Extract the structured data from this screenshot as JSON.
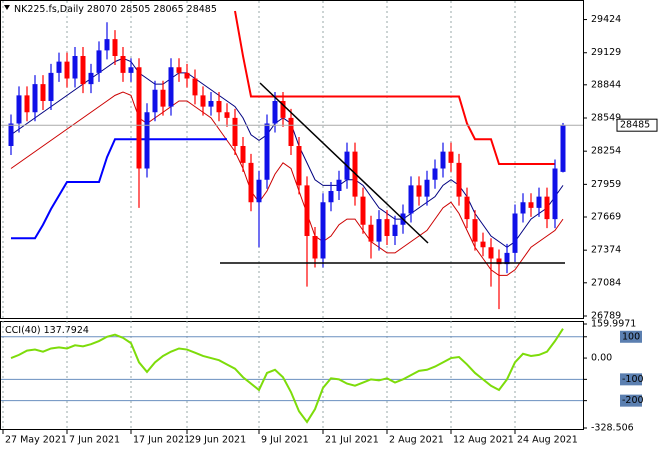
{
  "chart_data": [
    {
      "type": "candlestick",
      "title": "NK225.fs,Daily",
      "categories": [
        "27 May 2021",
        null,
        null,
        null,
        null,
        null,
        null,
        null,
        "7 Jun 2021",
        null,
        null,
        null,
        null,
        null,
        null,
        null,
        "17 Jun 2021",
        null,
        null,
        null,
        null,
        null,
        null,
        "29 Jun 2021",
        null,
        null,
        null,
        null,
        null,
        null,
        null,
        null,
        "9 Jul 2021",
        null,
        null,
        null,
        null,
        null,
        null,
        null,
        "21 Jul 2021",
        null,
        null,
        null,
        null,
        null,
        null,
        null,
        "2 Aug 2021",
        null,
        null,
        null,
        null,
        null,
        null,
        null,
        "12 Aug 2021",
        null,
        null,
        null,
        null,
        null,
        null,
        null,
        "24 Aug 2021",
        null,
        null,
        null,
        null,
        null
      ],
      "open": [
        28300,
        28500,
        28750,
        28600,
        28850,
        28700,
        28950,
        29050,
        28900,
        29100,
        28850,
        28950,
        29150,
        29250,
        29100,
        28950,
        29000,
        28100,
        28600,
        28800,
        28650,
        29000,
        28950,
        28900,
        28750,
        28650,
        28700,
        28600,
        28550,
        28300,
        28150,
        27800,
        28000,
        28500,
        28700,
        28550,
        28300,
        27950,
        27500,
        27300,
        27800,
        27900,
        28000,
        28250,
        27850,
        27600,
        27450,
        27650,
        27500,
        27600,
        27700,
        27950,
        27850,
        28000,
        28100,
        28250,
        28150,
        27850,
        27650,
        27450,
        27400,
        27300,
        27250,
        27350,
        27700,
        27800,
        27750,
        27850,
        27650,
        28070
      ],
      "high": [
        28580,
        28830,
        28830,
        28930,
        28930,
        29030,
        29130,
        29130,
        29180,
        29180,
        29030,
        29230,
        29400,
        29330,
        29180,
        29080,
        29080,
        28680,
        28880,
        28880,
        29080,
        29080,
        29030,
        28980,
        28830,
        28780,
        28780,
        28680,
        28630,
        28380,
        28230,
        28080,
        28580,
        28780,
        28780,
        28630,
        28380,
        28030,
        27580,
        27880,
        27980,
        28080,
        28330,
        28330,
        27930,
        27680,
        27730,
        27730,
        27680,
        27780,
        28030,
        28030,
        28080,
        28180,
        28330,
        28330,
        28230,
        27930,
        27730,
        27530,
        27480,
        27380,
        27430,
        27780,
        27880,
        27880,
        27930,
        27930,
        28180,
        28505
      ],
      "low": [
        28220,
        28420,
        28520,
        28520,
        28620,
        28620,
        28870,
        28820,
        28820,
        28770,
        28770,
        28870,
        29070,
        29020,
        28870,
        28870,
        27750,
        28020,
        28520,
        28570,
        28570,
        28870,
        28820,
        28670,
        28570,
        28570,
        28520,
        28470,
        28220,
        28070,
        27720,
        27400,
        27920,
        28420,
        28470,
        28220,
        27870,
        27050,
        27220,
        27220,
        27720,
        27820,
        27920,
        27770,
        27520,
        27300,
        27370,
        27420,
        27420,
        27520,
        27620,
        27770,
        27770,
        27920,
        28020,
        28070,
        27770,
        27570,
        27370,
        27320,
        27050,
        26850,
        27170,
        27270,
        27620,
        27670,
        27670,
        27570,
        27570,
        28065
      ],
      "close": [
        28500,
        28750,
        28600,
        28850,
        28700,
        28950,
        29050,
        28900,
        29100,
        28850,
        28950,
        29150,
        29250,
        29100,
        28950,
        29000,
        28100,
        28600,
        28800,
        28650,
        29000,
        28950,
        28900,
        28750,
        28650,
        28700,
        28600,
        28550,
        28300,
        28150,
        27800,
        28000,
        28500,
        28700,
        28550,
        28300,
        27950,
        27500,
        27300,
        27800,
        27900,
        28000,
        28250,
        27850,
        27600,
        27450,
        27650,
        27500,
        27600,
        27700,
        27950,
        27850,
        28000,
        28100,
        28250,
        28150,
        27850,
        27650,
        27450,
        27400,
        27300,
        27250,
        27350,
        27700,
        27800,
        27750,
        27850,
        27650,
        28100,
        28485
      ],
      "up_color": "#1010e8",
      "down_color": "#ff0000",
      "overlays": [
        {
          "color": "#000080",
          "width": 1,
          "values": [
            28400,
            28450,
            28500,
            28550,
            28600,
            28650,
            28700,
            28750,
            28800,
            28850,
            28900,
            28950,
            29000,
            29050,
            29080,
            29050,
            28950,
            28900,
            28850,
            28850,
            28900,
            28950,
            28950,
            28900,
            28850,
            28800,
            28750,
            28700,
            28650,
            28550,
            28400,
            28350,
            28400,
            28500,
            28550,
            28500,
            28300,
            28150,
            28000,
            27950,
            27950,
            27950,
            28000,
            28000,
            27950,
            27850,
            27750,
            27700,
            27650,
            27650,
            27700,
            27750,
            27800,
            27850,
            27950,
            28000,
            27950,
            27850,
            27700,
            27600,
            27500,
            27450,
            27400,
            27450,
            27550,
            27650,
            27700,
            27750,
            27850,
            27950
          ]
        },
        {
          "color": "#cc0000",
          "width": 1,
          "values": [
            28100,
            28150,
            28200,
            28250,
            28300,
            28350,
            28400,
            28450,
            28500,
            28550,
            28600,
            28650,
            28700,
            28750,
            28780,
            28750,
            28550,
            28500,
            28550,
            28600,
            28650,
            28700,
            28700,
            28650,
            28600,
            28550,
            28450,
            28350,
            28250,
            28100,
            27900,
            27800,
            27900,
            28050,
            28150,
            28100,
            27900,
            27700,
            27500,
            27450,
            27500,
            27600,
            27650,
            27650,
            27550,
            27450,
            27400,
            27350,
            27350,
            27400,
            27450,
            27500,
            27550,
            27650,
            27750,
            27800,
            27700,
            27550,
            27400,
            27300,
            27200,
            27150,
            27150,
            27200,
            27300,
            27400,
            27450,
            27500,
            27550,
            27650
          ]
        },
        {
          "color": "#ff0000",
          "width": 2,
          "values": [
            null,
            null,
            null,
            null,
            null,
            null,
            null,
            null,
            null,
            null,
            null,
            null,
            null,
            null,
            null,
            null,
            null,
            null,
            null,
            null,
            null,
            null,
            null,
            null,
            null,
            null,
            null,
            null,
            29500,
            29100,
            28740,
            28740,
            28740,
            28740,
            28740,
            28740,
            28740,
            28740,
            28740,
            28740,
            28740,
            28740,
            28740,
            28740,
            28740,
            28740,
            28740,
            28740,
            28740,
            28740,
            28740,
            28740,
            28740,
            28740,
            28740,
            28740,
            28740,
            28500,
            28360,
            28360,
            28360,
            28140,
            28140,
            28140,
            28140,
            28140,
            28140,
            28140,
            28140,
            null
          ]
        },
        {
          "color": "#0000ff",
          "width": 2,
          "values": [
            27480,
            27480,
            27480,
            27480,
            27600,
            27740,
            27860,
            27980,
            27980,
            27980,
            27980,
            27980,
            28200,
            28360,
            28360,
            28360,
            28360,
            28360,
            28360,
            28360,
            28360,
            28360,
            28360,
            28360,
            28360,
            28360,
            28360,
            28360,
            null,
            null,
            null,
            null,
            null,
            null,
            null,
            null,
            null,
            null,
            null,
            null,
            null,
            null,
            null,
            null,
            null,
            null,
            null,
            null,
            null,
            null,
            null,
            null,
            null,
            null,
            null,
            null,
            null,
            null,
            null,
            null,
            null,
            null,
            null,
            null,
            null,
            null,
            null,
            null,
            null,
            null
          ]
        }
      ],
      "ylim": [
        26780,
        29580
      ],
      "yticks": [
        26789,
        27084,
        27374,
        27669,
        27959,
        28254,
        28549,
        28844,
        29129,
        29424
      ]
    },
    {
      "type": "line",
      "title": "CCI(40)",
      "color": "#7ddc0a",
      "values": [
        0,
        15,
        35,
        40,
        30,
        45,
        50,
        45,
        60,
        55,
        65,
        80,
        100,
        110,
        95,
        70,
        -20,
        -65,
        -20,
        10,
        30,
        45,
        40,
        25,
        10,
        0,
        -10,
        -30,
        -50,
        -90,
        -120,
        -150,
        -70,
        -55,
        -90,
        -160,
        -250,
        -300,
        -240,
        -140,
        -95,
        -100,
        -120,
        -130,
        -115,
        -100,
        -105,
        -95,
        -115,
        -100,
        -80,
        -60,
        -55,
        -40,
        -20,
        0,
        5,
        -30,
        -70,
        -100,
        -130,
        -150,
        -100,
        -20,
        20,
        10,
        15,
        30,
        80,
        137.7924
      ],
      "ylim": [
        -328.506,
        159.9971
      ],
      "yticks": [
        159.9971,
        100,
        {
          "value": 0,
          "label": "0.00"
        },
        -100,
        -200,
        -328.506
      ],
      "levels": [
        100,
        -100,
        -200
      ]
    }
  ]
}
